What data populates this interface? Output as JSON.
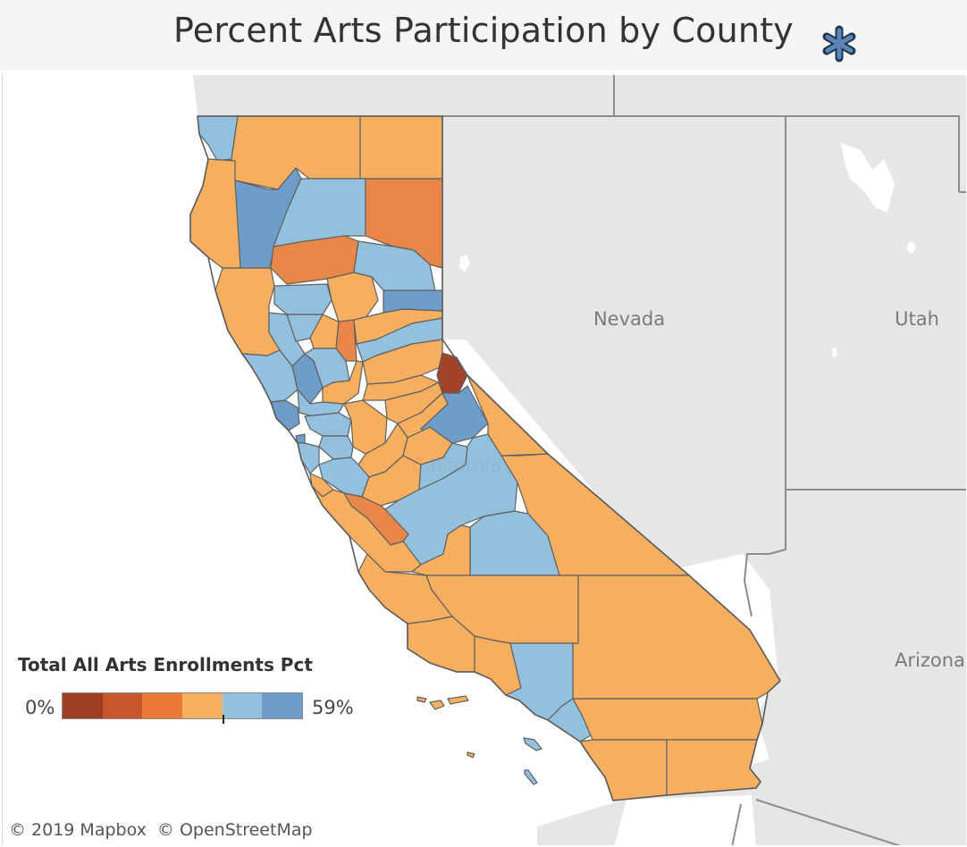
{
  "title": "Percent Arts Participation by County",
  "logo_icon": "asterisk-icon",
  "map": {
    "labels": {
      "nevada": "Nevada",
      "utah": "Utah",
      "arizona": "Arizona",
      "california": "California"
    },
    "colors": {
      "lake": "#ffffff",
      "ocean": "#ffffff",
      "land_neighbor": "#e6e6e6",
      "state_border": "#8c8c8c",
      "county_border": "#5f5f5f",
      "orange_light": "#f6ae5f",
      "orange_mid": "#e88747",
      "orange_dark": "#cf5b2c",
      "brown": "#a3432a",
      "blue_light": "#93c0dd",
      "blue_mid": "#6d9dc8"
    }
  },
  "legend": {
    "title": "Total All Arts Enrollments Pct",
    "min_label": "0%",
    "max_label": "59%",
    "steps": [
      "#9e3d22",
      "#c8562d",
      "#ec7a36",
      "#f6ae5f",
      "#93c0dd",
      "#6d9dc8"
    ]
  },
  "attribution": {
    "mapbox": "© 2019 Mapbox",
    "osm": "© OpenStreetMap"
  }
}
